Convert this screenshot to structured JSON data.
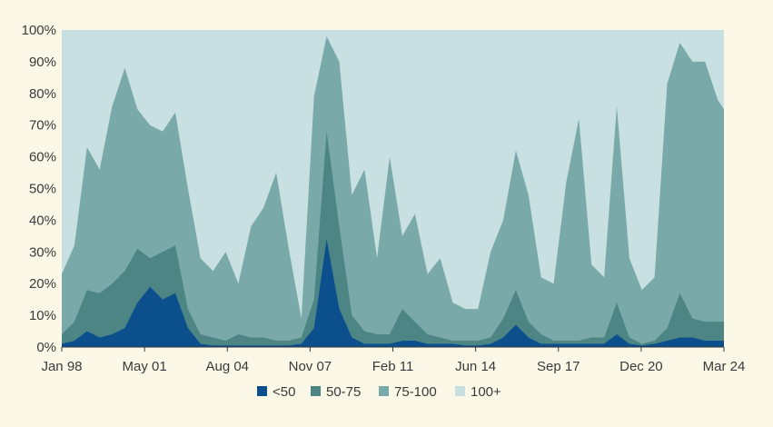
{
  "chart_data": {
    "type": "area",
    "stacked": false,
    "title": "",
    "xlabel": "",
    "ylabel": "",
    "ylim": [
      0,
      100
    ],
    "y_tick_labels": [
      "0%",
      "10%",
      "20%",
      "30%",
      "40%",
      "50%",
      "60%",
      "70%",
      "80%",
      "90%",
      "100%"
    ],
    "x_tick_labels": [
      "Jan 98",
      "May 01",
      "Aug 04",
      "Nov 07",
      "Feb 11",
      "Jun 14",
      "Sep 17",
      "Dec 20",
      "Mar 24"
    ],
    "grid": false,
    "legend_position": "bottom",
    "x": [
      1998.0,
      1998.5,
      1999.0,
      1999.5,
      2000.0,
      2000.5,
      2001.0,
      2001.5,
      2002.0,
      2002.5,
      2003.0,
      2003.5,
      2004.0,
      2004.5,
      2005.0,
      2005.5,
      2006.0,
      2006.5,
      2007.0,
      2007.5,
      2008.0,
      2008.5,
      2009.0,
      2009.5,
      2010.0,
      2010.5,
      2011.0,
      2011.5,
      2012.0,
      2012.5,
      2013.0,
      2013.5,
      2014.0,
      2014.5,
      2015.0,
      2015.5,
      2016.0,
      2016.5,
      2017.0,
      2017.5,
      2018.0,
      2018.5,
      2019.0,
      2019.5,
      2020.0,
      2020.5,
      2021.0,
      2021.5,
      2022.0,
      2022.5,
      2023.0,
      2023.5,
      2024.0,
      2024.25
    ],
    "series": [
      {
        "name": "<50",
        "color": "#0b4f8c",
        "values": [
          1,
          2,
          5,
          3,
          4,
          6,
          14,
          19,
          15,
          17,
          6,
          1,
          0.5,
          0.5,
          0.5,
          0.5,
          0.5,
          0.5,
          0.5,
          1,
          6,
          34,
          12,
          3,
          1,
          1,
          1,
          2,
          2,
          1,
          1,
          1,
          0.5,
          0.5,
          1,
          3,
          7,
          3,
          1,
          1,
          1,
          1,
          1,
          1,
          4,
          1,
          0.5,
          1,
          2,
          3,
          3,
          2,
          2,
          2
        ]
      },
      {
        "name": "50-75",
        "color": "#4d8585",
        "values": [
          4,
          8,
          18,
          17,
          20,
          24,
          31,
          28,
          30,
          32,
          12,
          4,
          3,
          2,
          4,
          3,
          3,
          2,
          2,
          3,
          15,
          68,
          38,
          10,
          5,
          4,
          4,
          12,
          8,
          4,
          3,
          2,
          2,
          2,
          3,
          9,
          18,
          8,
          4,
          2,
          2,
          2,
          3,
          3,
          14,
          3,
          1,
          2,
          6,
          17,
          9,
          8,
          8,
          8
        ]
      },
      {
        "name": "75-100",
        "color": "#79a9a8",
        "values": [
          23,
          32,
          63,
          56,
          76,
          88,
          75,
          70,
          68,
          74,
          50,
          28,
          24,
          30,
          20,
          38,
          44,
          55,
          31,
          9,
          79,
          98,
          90,
          48,
          56,
          28,
          60,
          35,
          42,
          23,
          28,
          14,
          12,
          12,
          30,
          40,
          62,
          48,
          22,
          20,
          52,
          72,
          26,
          22,
          76,
          28,
          18,
          22,
          83,
          96,
          90,
          90,
          78,
          75
        ]
      },
      {
        "name": "100+",
        "color": "#c8e0e2",
        "values": [
          100,
          100,
          100,
          100,
          100,
          100,
          100,
          100,
          100,
          100,
          100,
          100,
          100,
          100,
          100,
          100,
          100,
          100,
          100,
          100,
          100,
          100,
          100,
          100,
          100,
          100,
          100,
          100,
          100,
          100,
          100,
          100,
          100,
          100,
          100,
          100,
          100,
          100,
          100,
          100,
          100,
          100,
          100,
          100,
          100,
          100,
          100,
          100,
          100,
          100,
          100,
          100,
          100,
          100
        ]
      }
    ]
  }
}
